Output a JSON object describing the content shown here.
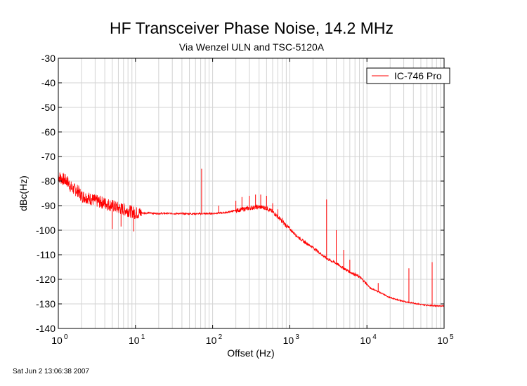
{
  "chart_data": {
    "type": "line",
    "title": "HF Transceiver Phase Noise, 14.2 MHz",
    "subtitle": "Via Wenzel ULN and TSC-5120A",
    "xlabel": "Offset (Hz)",
    "ylabel": "dBc(Hz)",
    "x_scale": "log",
    "xlim": [
      1,
      100000
    ],
    "ylim": [
      -140,
      -30
    ],
    "x_ticks": [
      {
        "base": "10",
        "exp": "0",
        "value": 1
      },
      {
        "base": "10",
        "exp": "1",
        "value": 10
      },
      {
        "base": "10",
        "exp": "2",
        "value": 100
      },
      {
        "base": "10",
        "exp": "3",
        "value": 1000
      },
      {
        "base": "10",
        "exp": "4",
        "value": 10000
      },
      {
        "base": "10",
        "exp": "5",
        "value": 100000
      }
    ],
    "y_ticks": [
      "-30",
      "-40",
      "-50",
      "-60",
      "-70",
      "-80",
      "-90",
      "-100",
      "-110",
      "-120",
      "-130",
      "-140"
    ],
    "grid": true,
    "legend_position": "top-right",
    "series": [
      {
        "name": "IC-746 Pro",
        "color": "#ff0000",
        "x": [
          1,
          1.1,
          1.3,
          1.5,
          1.8,
          2,
          2.5,
          3,
          4,
          5,
          6,
          7,
          8,
          9,
          10,
          12,
          15,
          20,
          30,
          50,
          70,
          100,
          150,
          200,
          300,
          400,
          500,
          600,
          700,
          800,
          1000,
          1200,
          1500,
          2000,
          2500,
          3000,
          4000,
          5000,
          6000,
          7000,
          8000,
          9000,
          10000,
          11000,
          13000,
          15000,
          20000,
          30000,
          40000,
          50000,
          60000,
          70000,
          80000,
          100000
        ],
        "y": [
          -78,
          -79,
          -80,
          -83,
          -84,
          -86,
          -87,
          -88,
          -89,
          -90,
          -91,
          -91.5,
          -92,
          -92.5,
          -93,
          -93,
          -93,
          -93.2,
          -93.2,
          -93.3,
          -93.3,
          -93.2,
          -92.8,
          -92,
          -91,
          -90.5,
          -91,
          -92.5,
          -94.5,
          -96.5,
          -99.5,
          -102,
          -104.5,
          -107,
          -109.5,
          -111.5,
          -113.5,
          -115.5,
          -117,
          -118,
          -119,
          -120.5,
          -122,
          -123.5,
          -124.5,
          -125.5,
          -127.5,
          -129,
          -129.7,
          -130.2,
          -130.5,
          -130.7,
          -130.8,
          -130.8
        ]
      }
    ],
    "spurs": [
      {
        "x": 5,
        "y": -99.5
      },
      {
        "x": 6.5,
        "y": -98.5
      },
      {
        "x": 9.5,
        "y": -100.5
      },
      {
        "x": 72,
        "y": -75
      },
      {
        "x": 120,
        "y": -90
      },
      {
        "x": 200,
        "y": -88
      },
      {
        "x": 240,
        "y": -86.5
      },
      {
        "x": 300,
        "y": -86
      },
      {
        "x": 360,
        "y": -85.5
      },
      {
        "x": 420,
        "y": -85.5
      },
      {
        "x": 500,
        "y": -86
      },
      {
        "x": 600,
        "y": -89
      },
      {
        "x": 700,
        "y": -91.5
      },
      {
        "x": 800,
        "y": -95
      },
      {
        "x": 3000,
        "y": -87.5
      },
      {
        "x": 4000,
        "y": -100
      },
      {
        "x": 5000,
        "y": -108
      },
      {
        "x": 6000,
        "y": -112
      },
      {
        "x": 14000,
        "y": -121.5
      },
      {
        "x": 35000,
        "y": -115.5
      },
      {
        "x": 70000,
        "y": -113
      }
    ]
  },
  "footer": {
    "timestamp": "Sat Jun  2 13:06:38 2007"
  }
}
